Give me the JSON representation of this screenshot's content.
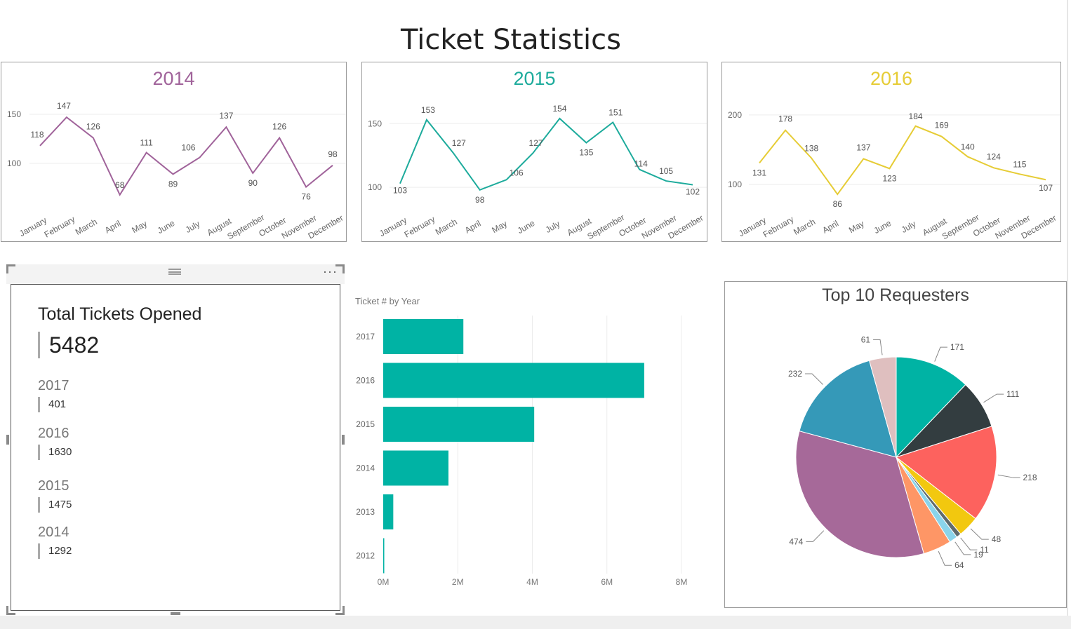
{
  "title": "Ticket Statistics",
  "colors": {
    "c2014": "#a0639a",
    "c2015": "#1dab9c",
    "c2016": "#e6cc35",
    "bar": "#00b3a4"
  },
  "months": [
    "January",
    "February",
    "March",
    "April",
    "May",
    "June",
    "July",
    "August",
    "September",
    "October",
    "November",
    "December"
  ],
  "kpi": {
    "title": "Total Tickets Opened",
    "total": "5482",
    "years": [
      {
        "year": "2017",
        "value": "401"
      },
      {
        "year": "2016",
        "value": "1630"
      },
      {
        "year": "2015",
        "value": "1475"
      },
      {
        "year": "2014",
        "value": "1292"
      }
    ]
  },
  "chart_data": [
    {
      "type": "line",
      "title": "2014",
      "color": "#a0639a",
      "categories": [
        "January",
        "February",
        "March",
        "April",
        "May",
        "June",
        "July",
        "August",
        "September",
        "October",
        "November",
        "December"
      ],
      "values": [
        118,
        147,
        126,
        68,
        111,
        89,
        106,
        137,
        90,
        126,
        76,
        98
      ],
      "data_labels": [
        "118",
        "147",
        "126",
        "68",
        "111",
        "89",
        "106",
        "137",
        "90",
        "126",
        "76",
        "98"
      ],
      "ylim": [
        60,
        160
      ],
      "yticks": [
        100,
        150
      ],
      "grid": true
    },
    {
      "type": "line",
      "title": "2015",
      "color": "#1dab9c",
      "categories": [
        "January",
        "February",
        "March",
        "April",
        "May",
        "June",
        "July",
        "August",
        "September",
        "October",
        "November",
        "December"
      ],
      "values": [
        103,
        153,
        127,
        98,
        106,
        127,
        154,
        135,
        151,
        114,
        105,
        102
      ],
      "data_labels": [
        "103",
        "153",
        "127",
        "98",
        "106",
        "127",
        "154",
        "135",
        "151",
        "114",
        "105",
        "102"
      ],
      "ylim": [
        88,
        165
      ],
      "yticks": [
        100,
        150
      ],
      "grid": true
    },
    {
      "type": "line",
      "title": "2016",
      "color": "#e6cc35",
      "categories": [
        "January",
        "February",
        "March",
        "April",
        "May",
        "June",
        "July",
        "August",
        "September",
        "October",
        "November",
        "December"
      ],
      "values": [
        131,
        178,
        138,
        86,
        137,
        123,
        184,
        169,
        140,
        124,
        115,
        107
      ],
      "data_labels": [
        "131",
        "178",
        "138",
        "86",
        "137",
        "123",
        "184",
        "169",
        "140",
        "124",
        "115",
        "107"
      ],
      "ylim": [
        74,
        215
      ],
      "yticks": [
        100,
        200
      ],
      "grid": true
    },
    {
      "type": "bar",
      "orientation": "horizontal",
      "title": "Ticket # by Year",
      "color": "#00b3a4",
      "categories": [
        "2017",
        "2016",
        "2015",
        "2014",
        "2013",
        "2012"
      ],
      "values": [
        2150000,
        7000000,
        4050000,
        1750000,
        270000,
        20000
      ],
      "xlim": [
        0,
        8000000
      ],
      "xticks": [
        0,
        2000000,
        4000000,
        6000000,
        8000000
      ],
      "xtick_labels": [
        "0M",
        "2M",
        "4M",
        "6M",
        "8M"
      ],
      "grid": true
    },
    {
      "type": "pie",
      "title": "Top 10 Requesters",
      "values": [
        171,
        111,
        218,
        48,
        11,
        19,
        64,
        474,
        232,
        61
      ],
      "labels": [
        "171",
        "111",
        "218",
        "48",
        "11",
        "19",
        "64",
        "474",
        "232",
        "61"
      ],
      "colors": [
        "#00b3a4",
        "#333d40",
        "#fd625e",
        "#f2c80f",
        "#5f6b6d",
        "#8ad4eb",
        "#fe9666",
        "#a66999",
        "#3599b8",
        "#dfbfbf"
      ],
      "note": "slice sizes estimated from the drawn angles"
    }
  ]
}
